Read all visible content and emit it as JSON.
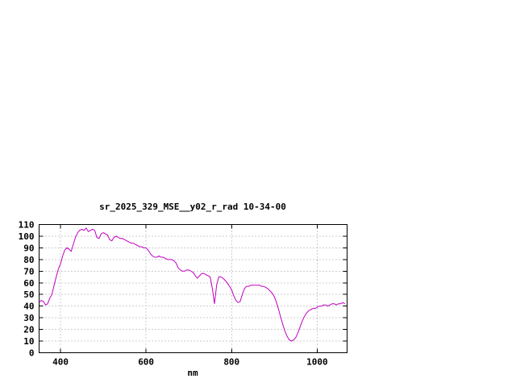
{
  "window": {
    "background": "#ffffff"
  },
  "chart_data": {
    "type": "line",
    "title": "sr_2025_329_MSE__y02_r_rad 10-34-00",
    "xlabel": "nm",
    "ylabel": "",
    "xlim": [
      350,
      1070
    ],
    "ylim": [
      0,
      110
    ],
    "xticks": [
      400,
      600,
      800,
      1000
    ],
    "yticks": [
      0,
      10,
      20,
      30,
      40,
      50,
      60,
      70,
      80,
      90,
      100,
      110
    ],
    "grid": true,
    "legend_position": "none",
    "colors": {
      "line": "#c000c0",
      "grid": "#999999",
      "border": "#000000",
      "text": "#000000"
    },
    "series": [
      {
        "name": "sr_2025_329_MSE__y02_r_rad",
        "points": [
          [
            350,
            43
          ],
          [
            355,
            45
          ],
          [
            360,
            44
          ],
          [
            365,
            41
          ],
          [
            370,
            42
          ],
          [
            375,
            47
          ],
          [
            380,
            50
          ],
          [
            385,
            58
          ],
          [
            390,
            65
          ],
          [
            395,
            72
          ],
          [
            400,
            76
          ],
          [
            405,
            83
          ],
          [
            410,
            88
          ],
          [
            415,
            90
          ],
          [
            420,
            89
          ],
          [
            425,
            87
          ],
          [
            430,
            93
          ],
          [
            435,
            99
          ],
          [
            440,
            103
          ],
          [
            445,
            105
          ],
          [
            450,
            106
          ],
          [
            455,
            105
          ],
          [
            460,
            107
          ],
          [
            465,
            104
          ],
          [
            470,
            105
          ],
          [
            475,
            106
          ],
          [
            480,
            105
          ],
          [
            485,
            99
          ],
          [
            490,
            98
          ],
          [
            495,
            102
          ],
          [
            500,
            103
          ],
          [
            505,
            102
          ],
          [
            510,
            101
          ],
          [
            515,
            97
          ],
          [
            520,
            96
          ],
          [
            525,
            99
          ],
          [
            530,
            100
          ],
          [
            535,
            99
          ],
          [
            540,
            98
          ],
          [
            545,
            98
          ],
          [
            550,
            97
          ],
          [
            555,
            96
          ],
          [
            560,
            95
          ],
          [
            565,
            94
          ],
          [
            570,
            94
          ],
          [
            575,
            93
          ],
          [
            580,
            92
          ],
          [
            585,
            91
          ],
          [
            590,
            91
          ],
          [
            595,
            90
          ],
          [
            600,
            90
          ],
          [
            605,
            88
          ],
          [
            610,
            85
          ],
          [
            615,
            83
          ],
          [
            620,
            82
          ],
          [
            625,
            82
          ],
          [
            630,
            83
          ],
          [
            635,
            82
          ],
          [
            640,
            82
          ],
          [
            645,
            81
          ],
          [
            650,
            80
          ],
          [
            655,
            80
          ],
          [
            660,
            80
          ],
          [
            665,
            79
          ],
          [
            670,
            77
          ],
          [
            675,
            73
          ],
          [
            680,
            71
          ],
          [
            685,
            70
          ],
          [
            690,
            70
          ],
          [
            695,
            71
          ],
          [
            700,
            71
          ],
          [
            705,
            70
          ],
          [
            710,
            69
          ],
          [
            715,
            66
          ],
          [
            720,
            64
          ],
          [
            725,
            66
          ],
          [
            730,
            68
          ],
          [
            735,
            68
          ],
          [
            740,
            67
          ],
          [
            745,
            66
          ],
          [
            750,
            65
          ],
          [
            755,
            55
          ],
          [
            760,
            42
          ],
          [
            765,
            58
          ],
          [
            770,
            65
          ],
          [
            775,
            65
          ],
          [
            780,
            64
          ],
          [
            785,
            62
          ],
          [
            790,
            60
          ],
          [
            795,
            57
          ],
          [
            800,
            54
          ],
          [
            805,
            49
          ],
          [
            810,
            45
          ],
          [
            815,
            43
          ],
          [
            820,
            44
          ],
          [
            825,
            50
          ],
          [
            830,
            55
          ],
          [
            835,
            57
          ],
          [
            840,
            57
          ],
          [
            845,
            58
          ],
          [
            850,
            58
          ],
          [
            855,
            58
          ],
          [
            860,
            58
          ],
          [
            865,
            58
          ],
          [
            870,
            57
          ],
          [
            875,
            57
          ],
          [
            880,
            56
          ],
          [
            885,
            55
          ],
          [
            890,
            53
          ],
          [
            895,
            51
          ],
          [
            900,
            48
          ],
          [
            905,
            43
          ],
          [
            910,
            37
          ],
          [
            915,
            30
          ],
          [
            920,
            24
          ],
          [
            925,
            18
          ],
          [
            930,
            14
          ],
          [
            935,
            11
          ],
          [
            940,
            10
          ],
          [
            945,
            11
          ],
          [
            950,
            13
          ],
          [
            955,
            17
          ],
          [
            960,
            22
          ],
          [
            965,
            27
          ],
          [
            970,
            31
          ],
          [
            975,
            34
          ],
          [
            980,
            36
          ],
          [
            985,
            37
          ],
          [
            990,
            38
          ],
          [
            995,
            38
          ],
          [
            1000,
            39
          ],
          [
            1005,
            40
          ],
          [
            1010,
            40
          ],
          [
            1015,
            41
          ],
          [
            1020,
            41
          ],
          [
            1025,
            40
          ],
          [
            1030,
            41
          ],
          [
            1035,
            42
          ],
          [
            1040,
            42
          ],
          [
            1045,
            41
          ],
          [
            1050,
            42
          ],
          [
            1055,
            42
          ],
          [
            1060,
            43
          ],
          [
            1065,
            42
          ]
        ]
      }
    ]
  }
}
